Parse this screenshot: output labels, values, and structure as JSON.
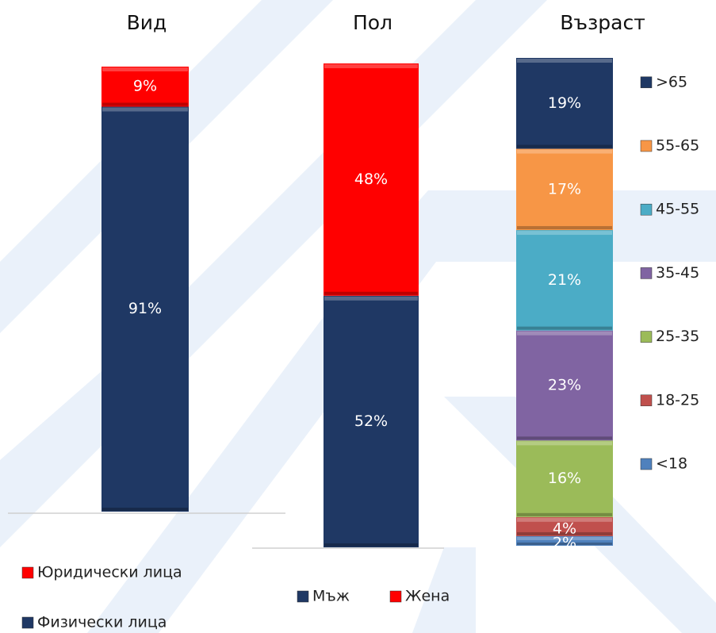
{
  "chart_data": [
    {
      "type": "bar",
      "stacked": true,
      "title": "Вид",
      "legend": "bottom",
      "series": [
        {
          "name": "Физически лица",
          "color": "#1f3864",
          "values": [
            91
          ],
          "value_labels": [
            "91%"
          ]
        },
        {
          "name": "Юридически лица",
          "color": "#ff0000",
          "values": [
            9
          ],
          "value_labels": [
            "9%"
          ]
        }
      ]
    },
    {
      "type": "bar",
      "stacked": true,
      "title": "Пол",
      "legend": "bottom",
      "series": [
        {
          "name": "Мъж",
          "color": "#1f3864",
          "values": [
            52
          ],
          "value_labels": [
            "52%"
          ]
        },
        {
          "name": "Жена",
          "color": "#ff0000",
          "values": [
            48
          ],
          "value_labels": [
            "48%"
          ]
        }
      ]
    },
    {
      "type": "bar",
      "stacked": true,
      "title": "Възраст",
      "legend": "right",
      "series": [
        {
          "name": "<18",
          "color": "#4f81bd",
          "values": [
            2
          ],
          "value_labels": [
            "2%"
          ]
        },
        {
          "name": "18-25",
          "color": "#c0504d",
          "values": [
            4
          ],
          "value_labels": [
            "4%"
          ]
        },
        {
          "name": "25-35",
          "color": "#9bbb59",
          "values": [
            16
          ],
          "value_labels": [
            "16%"
          ]
        },
        {
          "name": "35-45",
          "color": "#8064a2",
          "values": [
            23
          ],
          "value_labels": [
            "23%"
          ]
        },
        {
          "name": "45-55",
          "color": "#4bacc6",
          "values": [
            21
          ],
          "value_labels": [
            "21%"
          ]
        },
        {
          "name": "55-65",
          "color": "#f79646",
          "values": [
            17
          ],
          "value_labels": [
            "17%"
          ]
        },
        {
          "name": ">65",
          "color": "#1f3864",
          "values": [
            19
          ],
          "value_labels": [
            "19%"
          ]
        }
      ]
    }
  ]
}
